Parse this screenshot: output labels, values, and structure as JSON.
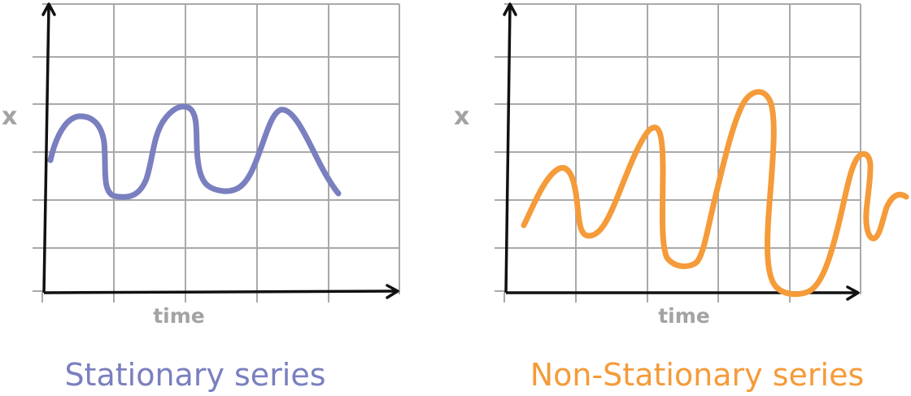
{
  "diagrams": [
    {
      "caption": "Stationary series",
      "color": "#7a7fbf",
      "ylabel": "x",
      "xlabel": "time"
    },
    {
      "caption": "Non-Stationary series",
      "color": "#f59b3a",
      "ylabel": "x",
      "xlabel": "time"
    }
  ]
}
